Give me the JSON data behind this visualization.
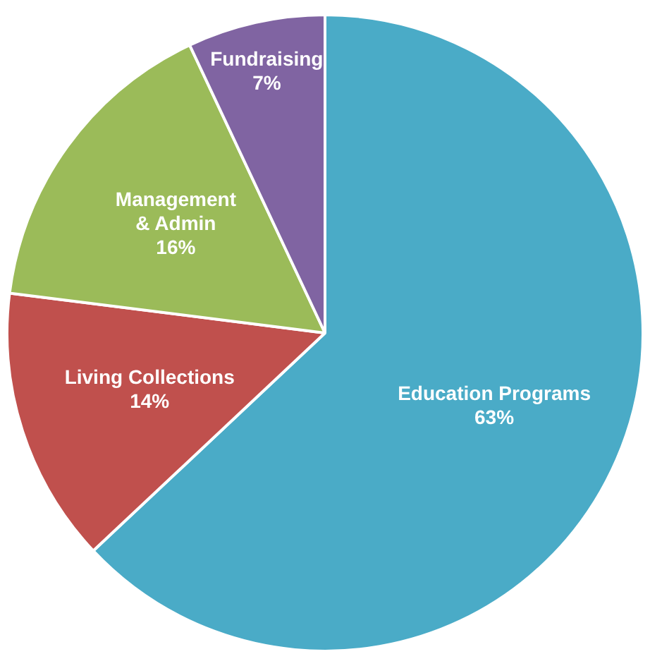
{
  "chart_data": {
    "type": "pie",
    "categories": [
      "Education Programs",
      "Living Collections",
      "Management & Admin",
      "Fundraising"
    ],
    "values": [
      63,
      14,
      16,
      7
    ],
    "colors": [
      "#4aabc7",
      "#c0504d",
      "#9bbb59",
      "#8064a2"
    ],
    "value_labels": [
      "63%",
      "14%",
      "16%",
      "7%"
    ],
    "legend": false
  }
}
